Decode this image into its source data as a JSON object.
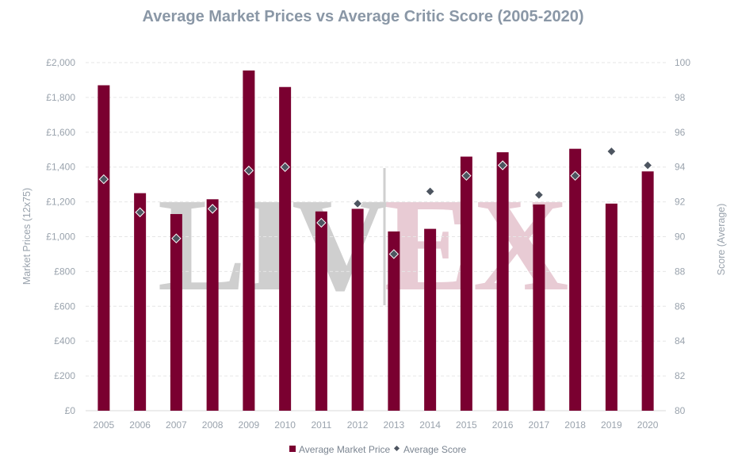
{
  "chart_data": {
    "type": "bar",
    "title": "Average Market Prices vs Average Critic Score (2005-2020)",
    "categories": [
      "2005",
      "2006",
      "2007",
      "2008",
      "2009",
      "2010",
      "2011",
      "2012",
      "2013",
      "2014",
      "2015",
      "2016",
      "2017",
      "2018",
      "2019",
      "2020"
    ],
    "series": [
      {
        "name": "Average Market Price",
        "type": "bar",
        "axis": "left",
        "color": "#7a0030",
        "values": [
          1870,
          1250,
          1130,
          1215,
          1955,
          1860,
          1145,
          1160,
          1030,
          1045,
          1460,
          1485,
          1185,
          1505,
          1190,
          1375
        ]
      },
      {
        "name": "Average Score",
        "type": "scatter",
        "axis": "right",
        "marker": "diamond",
        "color": "#4d5560",
        "values": [
          93.3,
          91.4,
          89.9,
          91.6,
          93.8,
          94.0,
          90.8,
          91.9,
          89.0,
          92.6,
          93.5,
          94.1,
          92.4,
          93.5,
          94.9,
          94.1
        ]
      }
    ],
    "y_left": {
      "label": "Market Prices (12x75)",
      "ylim": [
        0,
        2000
      ],
      "ticks": [
        "£0",
        "£200",
        "£400",
        "£600",
        "£800",
        "£1,000",
        "£1,200",
        "£1,400",
        "£1,600",
        "£1,800",
        "£2,000"
      ]
    },
    "y_right": {
      "label": "Score (Average)",
      "ylim": [
        80,
        100
      ],
      "ticks": [
        "80",
        "82",
        "84",
        "86",
        "88",
        "90",
        "92",
        "94",
        "96",
        "98",
        "100"
      ]
    },
    "grid": true,
    "legend": "bottom-center",
    "watermark": {
      "left": "LIV",
      "right": "EX",
      "left_color": "#cfcfcf",
      "right_color": "#e8cbd4"
    }
  }
}
